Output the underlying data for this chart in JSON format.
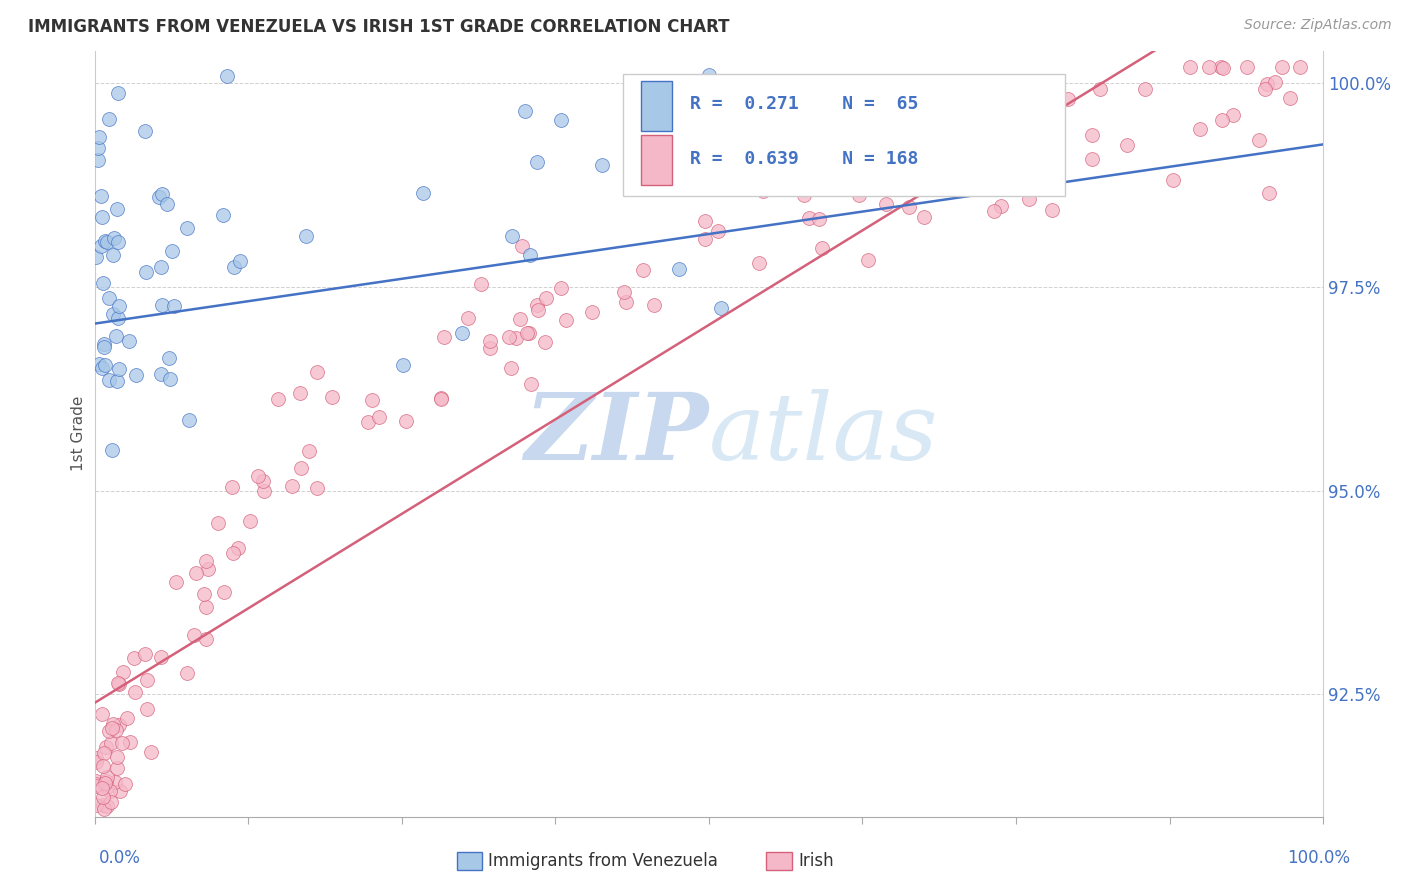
{
  "title": "IMMIGRANTS FROM VENEZUELA VS IRISH 1ST GRADE CORRELATION CHART",
  "source": "Source: ZipAtlas.com",
  "ylabel": "1st Grade",
  "watermark_zip": "ZIP",
  "watermark_atlas": "atlas",
  "xlim": [
    0.0,
    1.0
  ],
  "ylim": [
    0.91,
    1.004
  ],
  "yticks": [
    0.925,
    0.95,
    0.975,
    1.0
  ],
  "ytick_labels": [
    "92.5%",
    "95.0%",
    "97.5%",
    "100.0%"
  ],
  "legend_r1": "R =  0.271",
  "legend_n1": "N =  65",
  "legend_r2": "R =  0.639",
  "legend_n2": "N = 168",
  "color_blue": "#A8C8E8",
  "color_pink": "#F5B8C8",
  "color_blue_line": "#4472C4",
  "color_pink_line": "#D4607A",
  "background_color": "#ffffff",
  "grid_color": "#cccccc",
  "title_color": "#333333",
  "source_color": "#999999",
  "legend_text_color": "#4472C4",
  "watermark_color_zip": "#C8D8EE",
  "watermark_color_atlas": "#D8E8F4"
}
